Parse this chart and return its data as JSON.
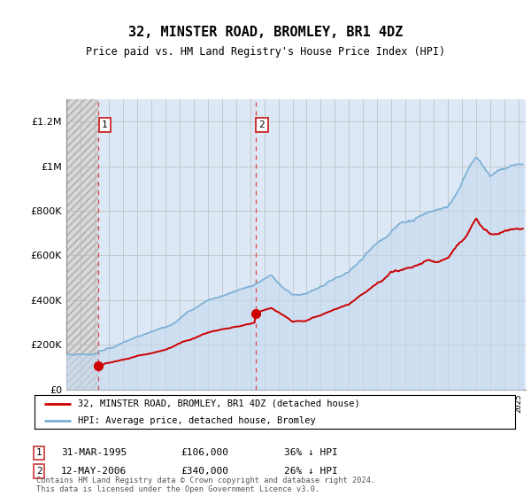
{
  "title": "32, MINSTER ROAD, BROMLEY, BR1 4DZ",
  "subtitle": "Price paid vs. HM Land Registry's House Price Index (HPI)",
  "ylim": [
    0,
    1300000
  ],
  "yticks": [
    0,
    200000,
    400000,
    600000,
    800000,
    1000000,
    1200000
  ],
  "xlim_start": 1993,
  "xlim_end": 2025.5,
  "sale1_x": 1995.25,
  "sale1_y": 106000,
  "sale2_x": 2006.37,
  "sale2_y": 340000,
  "legend_line1": "32, MINSTER ROAD, BROMLEY, BR1 4DZ (detached house)",
  "legend_line2": "HPI: Average price, detached house, Bromley",
  "footnote": "Contains HM Land Registry data © Crown copyright and database right 2024.\nThis data is licensed under the Open Government Licence v3.0.",
  "hpi_color": "#7bafd4",
  "price_color": "#cc0000",
  "bg_hatched": "#c8c8c8",
  "bg_blue": "#dce8f5",
  "grid_color": "#bbbbbb"
}
